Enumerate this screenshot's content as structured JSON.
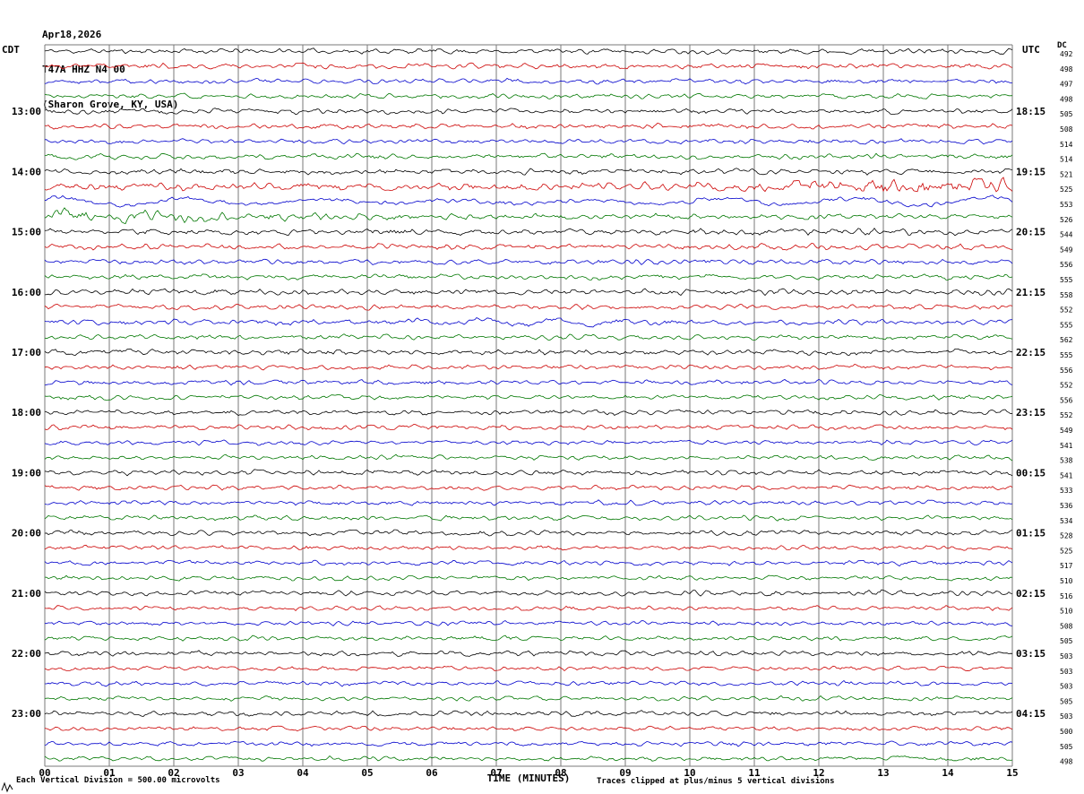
{
  "header": {
    "date": "Apr18,2026",
    "station": "T47A HHZ N4 00",
    "location": "(Sharon Grove, KY, USA)"
  },
  "axes": {
    "left_header": "CDT",
    "right_header": "UTC",
    "dc_header": "DC",
    "x_label": "TIME (MINUTES)",
    "x_ticks": [
      "00",
      "01",
      "02",
      "03",
      "04",
      "05",
      "06",
      "07",
      "08",
      "09",
      "10",
      "11",
      "12",
      "13",
      "14",
      "15"
    ]
  },
  "footer": {
    "scale_note": "Each Vertical Division =  500.00 microvolts",
    "clip_note": "Traces clipped at plus/minus 5 vertical divisions"
  },
  "palette": [
    "#000000",
    "#cc0000",
    "#0000cc",
    "#007700"
  ],
  "chart_data": {
    "type": "line",
    "subtype": "helicorder-seismogram",
    "title": "T47A HHZ N4 00 (Sharon Grove, KY, USA) Apr18,2026",
    "x_range_minutes": [
      0,
      15
    ],
    "minutes_per_row": 15,
    "rows_per_hour": 4,
    "volts_per_division": "500.00 microvolts",
    "clip": "plus/minus 5 vertical divisions",
    "color_cycle": "black,red,blue,green repeating per 15-minute trace",
    "rows": [
      {
        "cdt": "",
        "utc": "",
        "dc": 492,
        "amp": 1.0
      },
      {
        "cdt": "",
        "utc": "",
        "dc": 498,
        "amp": 1.0
      },
      {
        "cdt": "",
        "utc": "",
        "dc": 497,
        "amp": 0.9
      },
      {
        "cdt": "",
        "utc": "",
        "dc": 498,
        "amp": 0.9
      },
      {
        "cdt": "13:00",
        "utc": "18:15",
        "dc": 505,
        "amp": 1.0
      },
      {
        "cdt": "",
        "utc": "",
        "dc": 508,
        "amp": 1.0
      },
      {
        "cdt": "",
        "utc": "",
        "dc": 514,
        "amp": 0.9
      },
      {
        "cdt": "",
        "utc": "",
        "dc": 514,
        "amp": 1.0
      },
      {
        "cdt": "14:00",
        "utc": "19:15",
        "dc": 521,
        "amp": 1.1
      },
      {
        "cdt": "",
        "utc": "",
        "dc": 525,
        "amp": 1.4,
        "event": "ramp-end"
      },
      {
        "cdt": "",
        "utc": "",
        "dc": 553,
        "amp": 0.9,
        "event": "oscillation"
      },
      {
        "cdt": "",
        "utc": "",
        "dc": 526,
        "amp": 1.0,
        "event": "onset-burst"
      },
      {
        "cdt": "15:00",
        "utc": "20:15",
        "dc": 544,
        "amp": 1.2
      },
      {
        "cdt": "",
        "utc": "",
        "dc": 549,
        "amp": 1.1
      },
      {
        "cdt": "",
        "utc": "",
        "dc": 556,
        "amp": 1.0
      },
      {
        "cdt": "",
        "utc": "",
        "dc": 555,
        "amp": 1.0
      },
      {
        "cdt": "16:00",
        "utc": "21:15",
        "dc": 558,
        "amp": 1.1
      },
      {
        "cdt": "",
        "utc": "",
        "dc": 552,
        "amp": 1.0
      },
      {
        "cdt": "",
        "utc": "",
        "dc": 555,
        "amp": 1.0,
        "event": "mid-burst"
      },
      {
        "cdt": "",
        "utc": "",
        "dc": 562,
        "amp": 1.0
      },
      {
        "cdt": "17:00",
        "utc": "22:15",
        "dc": 555,
        "amp": 1.1
      },
      {
        "cdt": "",
        "utc": "",
        "dc": 556,
        "amp": 0.9
      },
      {
        "cdt": "",
        "utc": "",
        "dc": 552,
        "amp": 0.9
      },
      {
        "cdt": "",
        "utc": "",
        "dc": 556,
        "amp": 0.9
      },
      {
        "cdt": "18:00",
        "utc": "23:15",
        "dc": 552,
        "amp": 1.0
      },
      {
        "cdt": "",
        "utc": "",
        "dc": 549,
        "amp": 1.0
      },
      {
        "cdt": "",
        "utc": "",
        "dc": 541,
        "amp": 0.9
      },
      {
        "cdt": "",
        "utc": "",
        "dc": 538,
        "amp": 0.9
      },
      {
        "cdt": "19:00",
        "utc": "00:15",
        "dc": 541,
        "amp": 1.0
      },
      {
        "cdt": "",
        "utc": "",
        "dc": 533,
        "amp": 0.9
      },
      {
        "cdt": "",
        "utc": "",
        "dc": 536,
        "amp": 0.9
      },
      {
        "cdt": "",
        "utc": "",
        "dc": 534,
        "amp": 0.9
      },
      {
        "cdt": "20:00",
        "utc": "01:15",
        "dc": 528,
        "amp": 1.0
      },
      {
        "cdt": "",
        "utc": "",
        "dc": 525,
        "amp": 0.9
      },
      {
        "cdt": "",
        "utc": "",
        "dc": 517,
        "amp": 0.9
      },
      {
        "cdt": "",
        "utc": "",
        "dc": 510,
        "amp": 0.85
      },
      {
        "cdt": "21:00",
        "utc": "02:15",
        "dc": 516,
        "amp": 1.0
      },
      {
        "cdt": "",
        "utc": "",
        "dc": 510,
        "amp": 0.85
      },
      {
        "cdt": "",
        "utc": "",
        "dc": 508,
        "amp": 0.85
      },
      {
        "cdt": "",
        "utc": "",
        "dc": 505,
        "amp": 0.85
      },
      {
        "cdt": "22:00",
        "utc": "03:15",
        "dc": 503,
        "amp": 1.0
      },
      {
        "cdt": "",
        "utc": "",
        "dc": 503,
        "amp": 0.85
      },
      {
        "cdt": "",
        "utc": "",
        "dc": 503,
        "amp": 0.9
      },
      {
        "cdt": "",
        "utc": "",
        "dc": 505,
        "amp": 0.85
      },
      {
        "cdt": "23:00",
        "utc": "04:15",
        "dc": 503,
        "amp": 1.0
      },
      {
        "cdt": "",
        "utc": "",
        "dc": 500,
        "amp": 0.85
      },
      {
        "cdt": "",
        "utc": "",
        "dc": 505,
        "amp": 0.9
      },
      {
        "cdt": "",
        "utc": "",
        "dc": 498,
        "amp": 0.85
      }
    ]
  }
}
